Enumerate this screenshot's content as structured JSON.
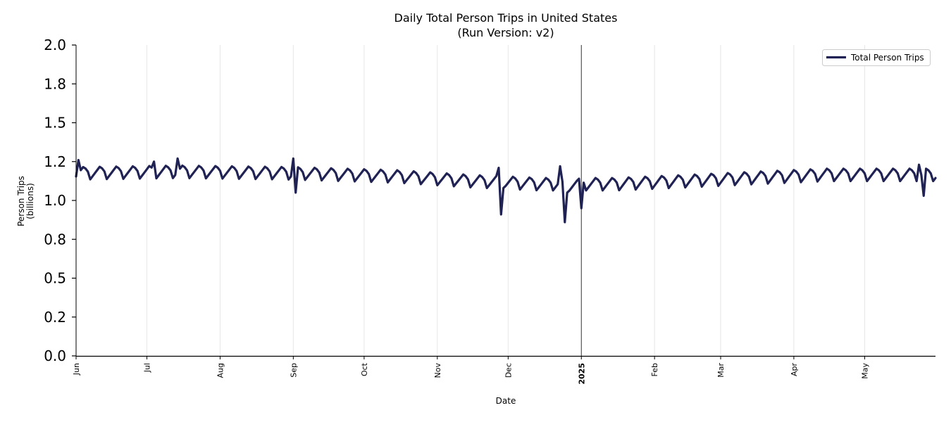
{
  "chart_data": {
    "type": "line",
    "title": "Daily Total Person Trips in United States",
    "subtitle": "(Run Version: v2)",
    "xlabel": "Date",
    "ylabel_line1": "Person Trips",
    "ylabel_line2": "(billions)",
    "ylim": [
      0,
      2.0
    ],
    "yticks": [
      0.0,
      0.25,
      0.5,
      0.75,
      1.0,
      1.25,
      1.5,
      1.75,
      2.0
    ],
    "ytick_labels": [
      "0.0",
      "0.2",
      "0.5",
      "0.8",
      "1.0",
      "1.2",
      "1.5",
      "1.8",
      "2.0"
    ],
    "x_start": "2024-06-01",
    "x_end": "2025-05-31",
    "xticks": [
      {
        "date": "2024-06-01",
        "label": "Jun",
        "bold": false
      },
      {
        "date": "2024-07-01",
        "label": "Jul",
        "bold": false
      },
      {
        "date": "2024-08-01",
        "label": "Aug",
        "bold": false
      },
      {
        "date": "2024-09-01",
        "label": "Sep",
        "bold": false
      },
      {
        "date": "2024-10-01",
        "label": "Oct",
        "bold": false
      },
      {
        "date": "2024-11-01",
        "label": "Nov",
        "bold": false
      },
      {
        "date": "2024-12-01",
        "label": "Dec",
        "bold": false
      },
      {
        "date": "2025-01-01",
        "label": "2025",
        "bold": true
      },
      {
        "date": "2025-02-01",
        "label": "Feb",
        "bold": false
      },
      {
        "date": "2025-03-01",
        "label": "Mar",
        "bold": false
      },
      {
        "date": "2025-04-01",
        "label": "Apr",
        "bold": false
      },
      {
        "date": "2025-05-01",
        "label": "May",
        "bold": false
      }
    ],
    "year_marker": "2025-01-01",
    "grid_x": true,
    "legend": {
      "label": "Total Person Trips",
      "position": "top-right"
    },
    "series": [
      {
        "name": "Total Person Trips",
        "color": "#1f2253",
        "weekly_pattern": [
          1.17,
          1.19,
          1.21,
          1.2,
          1.18,
          1.13,
          1.15
        ],
        "monthly_levels": [
          {
            "date": "2024-06-01",
            "value": 1.18
          },
          {
            "date": "2024-07-15",
            "value": 1.19
          },
          {
            "date": "2024-09-01",
            "value": 1.18
          },
          {
            "date": "2024-10-15",
            "value": 1.16
          },
          {
            "date": "2024-11-15",
            "value": 1.13
          },
          {
            "date": "2024-12-15",
            "value": 1.11
          },
          {
            "date": "2025-01-15",
            "value": 1.11
          },
          {
            "date": "2025-02-15",
            "value": 1.13
          },
          {
            "date": "2025-03-15",
            "value": 1.15
          },
          {
            "date": "2025-04-15",
            "value": 1.17
          },
          {
            "date": "2025-05-31",
            "value": 1.17
          }
        ],
        "anomalies": [
          {
            "date": "2024-06-02",
            "value": 1.26
          },
          {
            "date": "2024-07-04",
            "value": 1.25
          },
          {
            "date": "2024-07-14",
            "value": 1.27
          },
          {
            "date": "2024-09-01",
            "value": 1.27
          },
          {
            "date": "2024-09-02",
            "value": 1.05
          },
          {
            "date": "2024-11-27",
            "value": 1.21
          },
          {
            "date": "2024-11-28",
            "value": 0.91
          },
          {
            "date": "2024-11-29",
            "value": 1.08
          },
          {
            "date": "2024-12-23",
            "value": 1.22
          },
          {
            "date": "2024-12-24",
            "value": 1.12
          },
          {
            "date": "2024-12-25",
            "value": 0.86
          },
          {
            "date": "2024-12-26",
            "value": 1.05
          },
          {
            "date": "2024-12-31",
            "value": 1.14
          },
          {
            "date": "2025-01-01",
            "value": 0.95
          },
          {
            "date": "2025-05-24",
            "value": 1.23
          },
          {
            "date": "2025-05-26",
            "value": 1.03
          }
        ]
      }
    ]
  }
}
